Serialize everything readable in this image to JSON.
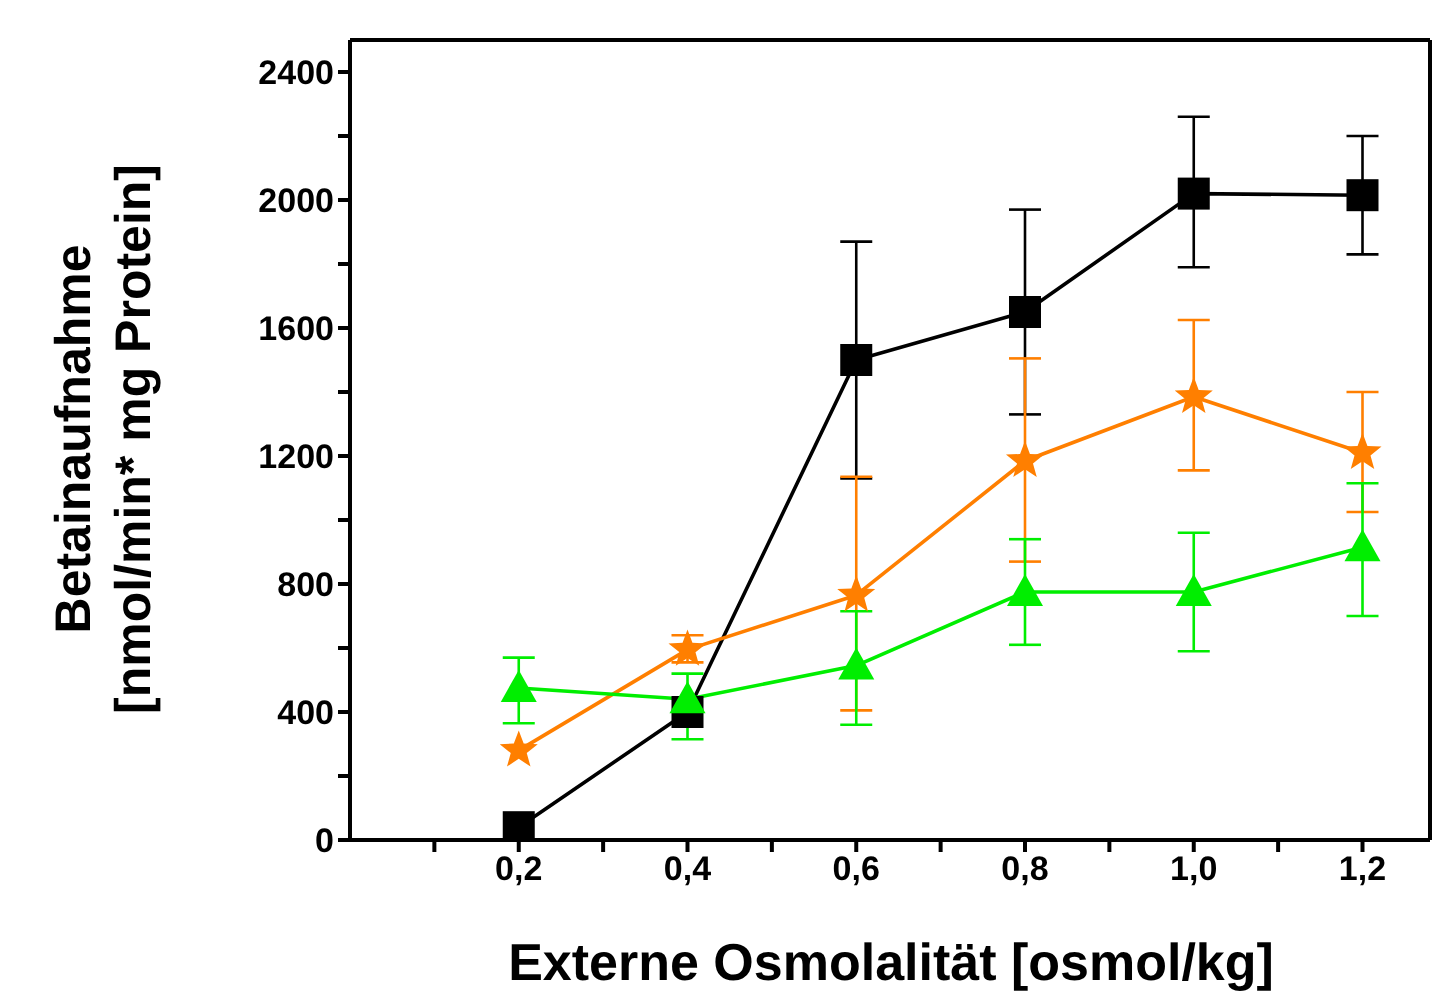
{
  "chart_data": {
    "type": "line",
    "xlabel": "Externe Osmolalität [osmol/kg]",
    "ylabel": "Betainaufnahme\n[nmol/min* mg Protein]",
    "x": [
      0.2,
      0.4,
      0.6,
      0.8,
      1.0,
      1.2
    ],
    "xlim": [
      0,
      1.28
    ],
    "xticks": [
      {
        "value": 0.1,
        "label": null
      },
      {
        "value": 0.2,
        "label": "0,2"
      },
      {
        "value": 0.3,
        "label": null
      },
      {
        "value": 0.4,
        "label": "0,4"
      },
      {
        "value": 0.5,
        "label": null
      },
      {
        "value": 0.6,
        "label": "0,6"
      },
      {
        "value": 0.7,
        "label": null
      },
      {
        "value": 0.8,
        "label": "0,8"
      },
      {
        "value": 0.9,
        "label": null
      },
      {
        "value": 1.0,
        "label": "1,0"
      },
      {
        "value": 1.1,
        "label": null
      },
      {
        "value": 1.2,
        "label": "1,2"
      }
    ],
    "ylim": [
      0,
      2500
    ],
    "yticks": [
      0,
      {
        "value": 200,
        "label": null
      },
      400,
      {
        "value": 600,
        "label": null
      },
      800,
      {
        "value": 1000,
        "label": null
      },
      1200,
      {
        "value": 1400,
        "label": null
      },
      1600,
      {
        "value": 1800,
        "label": null
      },
      2000,
      {
        "value": 2200,
        "label": null
      },
      2400
    ],
    "line_style": "solid",
    "series": [
      {
        "color": "#000000",
        "marker": "square",
        "values": [
          40,
          400,
          1500,
          1650,
          2020,
          2015
        ],
        "errors": [
          null,
          null,
          [
            1130,
            1870
          ],
          [
            1330,
            1970
          ],
          [
            1790,
            2260
          ],
          [
            1830,
            2200
          ]
        ]
      },
      {
        "color": "#ff7f00",
        "marker": "star",
        "values": [
          280,
          595,
          765,
          1185,
          1385,
          1210
        ],
        "errors": [
          null,
          [
            555,
            640
          ],
          [
            405,
            1135
          ],
          [
            870,
            1505
          ],
          [
            1155,
            1625
          ],
          [
            1025,
            1400
          ]
        ]
      },
      {
        "color": "#00ee00",
        "marker": "triangle",
        "values": [
          475,
          440,
          545,
          775,
          775,
          915
        ],
        "errors": [
          [
            365,
            570
          ],
          [
            315,
            520
          ],
          [
            360,
            715
          ],
          [
            610,
            940
          ],
          [
            590,
            960
          ],
          [
            700,
            1115
          ]
        ]
      }
    ]
  }
}
